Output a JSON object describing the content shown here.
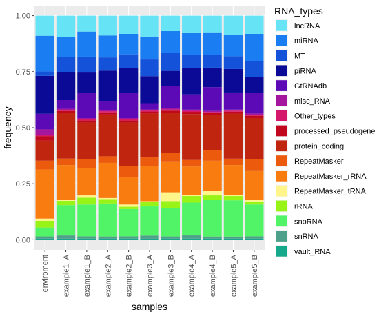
{
  "chart_data": {
    "type": "bar",
    "stacked": true,
    "xlabel": "samples",
    "ylabel": "frequency",
    "ylim": [
      0,
      1
    ],
    "yticks": [
      "0.00",
      "0.25",
      "0.50",
      "0.75",
      "1.00"
    ],
    "grid": true,
    "legend_position": "right",
    "legend_title": "RNA_types",
    "categories": [
      "enviroment",
      "example1_A",
      "example1_B",
      "example2_A",
      "example2_B",
      "example3_A",
      "example3_B",
      "example4_A",
      "example4_B",
      "example5_A",
      "example5_B"
    ],
    "series": [
      {
        "name": "lncRNA",
        "color": "#66e3f5",
        "values": [
          0.09,
          0.1,
          0.07,
          0.09,
          0.08,
          0.1,
          0.07,
          0.08,
          0.08,
          0.09,
          0.08
        ]
      },
      {
        "name": "miRNA",
        "color": "#1a7ef2",
        "values": [
          0.16,
          0.09,
          0.11,
          0.1,
          0.09,
          0.11,
          0.1,
          0.1,
          0.1,
          0.1,
          0.12
        ]
      },
      {
        "name": "MT",
        "color": "#1352d9",
        "values": [
          0.02,
          0.07,
          0.07,
          0.06,
          0.06,
          0.08,
          0.08,
          0.06,
          0.06,
          0.06,
          0.07
        ]
      },
      {
        "name": "piRNA",
        "color": "#0a0a96",
        "values": [
          0.17,
          0.13,
          0.09,
          0.14,
          0.11,
          0.13,
          0.07,
          0.12,
          0.09,
          0.11,
          0.07
        ]
      },
      {
        "name": "GtRNAdb",
        "color": "#5b0ab5",
        "values": [
          0.07,
          0.04,
          0.11,
          0.04,
          0.11,
          0.03,
          0.1,
          0.07,
          0.11,
          0.08,
          0.09
        ]
      },
      {
        "name": "misc_RNA",
        "color": "#a5169e",
        "values": [
          0.025,
          0.005,
          0.005,
          0.005,
          0.005,
          0.005,
          0.005,
          0.005,
          0.005,
          0.005,
          0.005
        ]
      },
      {
        "name": "Other_types",
        "color": "#d4176b",
        "values": [
          0.005,
          0.005,
          0.005,
          0.005,
          0.005,
          0.005,
          0.005,
          0.005,
          0.005,
          0.005,
          0.005
        ]
      },
      {
        "name": "processed_pseudogene",
        "color": "#c0071e",
        "values": [
          0.02,
          0.01,
          0.01,
          0.01,
          0.01,
          0.01,
          0.01,
          0.01,
          0.01,
          0.01,
          0.01
        ]
      },
      {
        "name": "protein_coding",
        "color": "#c0250f",
        "values": [
          0.09,
          0.21,
          0.16,
          0.19,
          0.19,
          0.21,
          0.18,
          0.21,
          0.16,
          0.21,
          0.18
        ]
      },
      {
        "name": "RepeatMasker",
        "color": "#eb5a0d",
        "values": [
          0.04,
          0.03,
          0.04,
          0.03,
          0.05,
          0.04,
          0.04,
          0.03,
          0.05,
          0.03,
          0.05
        ]
      },
      {
        "name": "RepeatMasker_rRNA",
        "color": "#f87c10",
        "values": [
          0.22,
          0.16,
          0.12,
          0.16,
          0.12,
          0.17,
          0.14,
          0.13,
          0.14,
          0.14,
          0.13
        ]
      },
      {
        "name": "RepeatMasker_tRNA",
        "color": "#fff58a",
        "values": [
          0.01,
          0.005,
          0.01,
          0.005,
          0.01,
          0.005,
          0.04,
          0.005,
          0.02,
          0.005,
          0.01
        ]
      },
      {
        "name": "rRNA",
        "color": "#98f316",
        "values": [
          0.03,
          0.02,
          0.03,
          0.02,
          0.01,
          0.02,
          0.03,
          0.03,
          0.02,
          0.02,
          0.01
        ]
      },
      {
        "name": "snoRNA",
        "color": "#52f467",
        "values": [
          0.04,
          0.14,
          0.14,
          0.15,
          0.12,
          0.14,
          0.13,
          0.15,
          0.17,
          0.17,
          0.14
        ]
      },
      {
        "name": "snRNA",
        "color": "#4fa08a",
        "values": [
          0.01,
          0.015,
          0.01,
          0.01,
          0.01,
          0.015,
          0.01,
          0.015,
          0.01,
          0.01,
          0.01
        ]
      },
      {
        "name": "vault_RNA",
        "color": "#16a88b",
        "values": [
          0.005,
          0.005,
          0.005,
          0.005,
          0.005,
          0.005,
          0.005,
          0.005,
          0.005,
          0.005,
          0.005
        ]
      }
    ]
  }
}
